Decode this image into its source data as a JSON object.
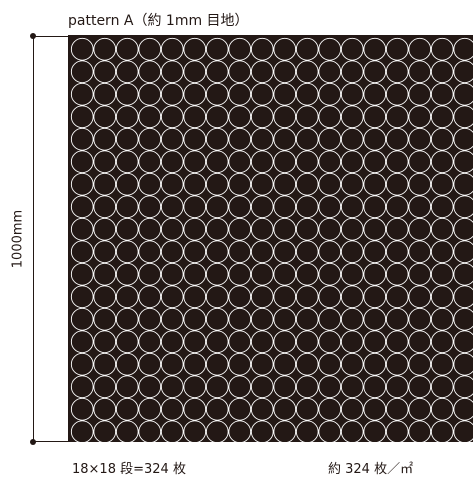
{
  "title": "pattern A（約 1mm 目地）",
  "dimension_label": "1000mm",
  "caption_left": "18×18 段=324 枚",
  "caption_right": "約 324 枚／㎡",
  "grid": {
    "columns": 18,
    "rows": 18
  },
  "colors": {
    "tile": "#231815",
    "joint": "#ffffff",
    "line": "#231815"
  }
}
